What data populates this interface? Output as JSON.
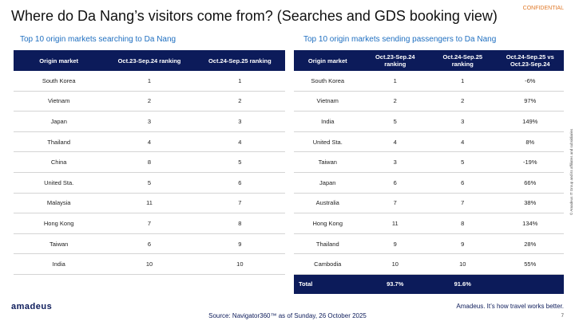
{
  "header": {
    "title": "Where do Da Nang’s visitors come from? (Searches and GDS booking view)",
    "label": "CONFIDENTIAL"
  },
  "left_table": {
    "title": "Top 10 origin markets searching to Da Nang",
    "headers": [
      "Origin market",
      "Oct.23-Sep.24 ranking",
      "Oct.24-Sep.25 ranking"
    ],
    "rows": [
      [
        "South Korea",
        "1",
        "1"
      ],
      [
        "Vietnam",
        "2",
        "2"
      ],
      [
        "Japan",
        "3",
        "3"
      ],
      [
        "Thailand",
        "4",
        "4"
      ],
      [
        "China",
        "8",
        "5"
      ],
      [
        "United Sta.",
        "5",
        "6"
      ],
      [
        "Malaysia",
        "11",
        "7"
      ],
      [
        "Hong Kong",
        "7",
        "8"
      ],
      [
        "Taiwan",
        "6",
        "9"
      ],
      [
        "India",
        "10",
        "10"
      ]
    ]
  },
  "right_table": {
    "title": "Top 10 origin markets sending passengers to Da Nang",
    "headers": [
      "Origin market",
      "Oct.23-Sep.24 ranking",
      "Oct.24-Sep.25 ranking",
      "Oct.24-Sep.25 vs Oct.23-Sep.24"
    ],
    "rows": [
      [
        "South Korea",
        "1",
        "1",
        "-6%"
      ],
      [
        "Vietnam",
        "2",
        "2",
        "97%"
      ],
      [
        "India",
        "5",
        "3",
        "149%"
      ],
      [
        "United Sta.",
        "4",
        "4",
        "8%"
      ],
      [
        "Taiwan",
        "3",
        "5",
        "-19%"
      ],
      [
        "Japan",
        "6",
        "6",
        "66%"
      ],
      [
        "Australia",
        "7",
        "7",
        "38%"
      ],
      [
        "Hong Kong",
        "11",
        "8",
        "134%"
      ],
      [
        "Thailand",
        "9",
        "9",
        "28%"
      ],
      [
        "Cambodia",
        "10",
        "10",
        "55%"
      ]
    ],
    "total": [
      "Total",
      "93.7%",
      "91.6%",
      ""
    ]
  },
  "footer": {
    "logo": "amadeus",
    "tagline": "Amadeus. It’s how travel works better.",
    "source": "Source: Navigator360™ as of Sunday, 26 October 2025",
    "page": "7",
    "copyright": "© Amadeus IT Group and its affiliates and subsidiaries"
  }
}
